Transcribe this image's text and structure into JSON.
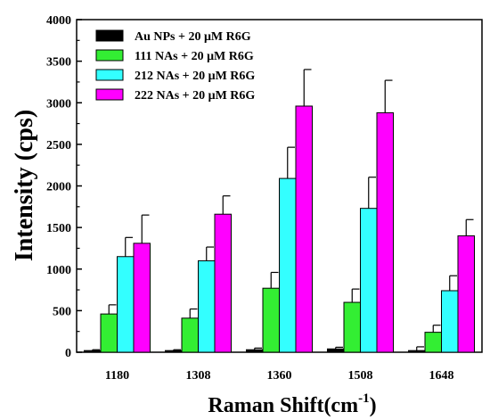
{
  "chart_data": {
    "type": "bar",
    "xlabel": "Raman Shift(cm",
    "xlabel_sup": "-1",
    "xlabel_close": ")",
    "ylabel": "Intensity (cps)",
    "ylim": [
      0,
      4000
    ],
    "yticks": [
      0,
      500,
      1000,
      1500,
      2000,
      2500,
      3000,
      3500,
      4000
    ],
    "categories": [
      "1180",
      "1308",
      "1360",
      "1508",
      "1648"
    ],
    "legend_position": "top-left",
    "error_bars": true,
    "series": [
      {
        "name": "Au  NPs + 20 μM R6G",
        "color": "#000000",
        "values": [
          20,
          20,
          30,
          40,
          20
        ],
        "errors": [
          10,
          10,
          20,
          20,
          45
        ]
      },
      {
        "name": "111 NAs + 20 μM R6G",
        "color": "#33ee33",
        "values": [
          460,
          410,
          770,
          600,
          240
        ],
        "errors": [
          110,
          110,
          190,
          160,
          85
        ]
      },
      {
        "name": "212 NAs + 20 μM R6G",
        "color": "#33ffff",
        "values": [
          1150,
          1100,
          2090,
          1730,
          740
        ],
        "errors": [
          230,
          165,
          375,
          375,
          180
        ]
      },
      {
        "name": "222 NAs + 20 μM R6G",
        "color": "#ff00ff",
        "values": [
          1310,
          1660,
          2960,
          2880,
          1400
        ],
        "errors": [
          340,
          220,
          440,
          390,
          195
        ]
      }
    ]
  }
}
